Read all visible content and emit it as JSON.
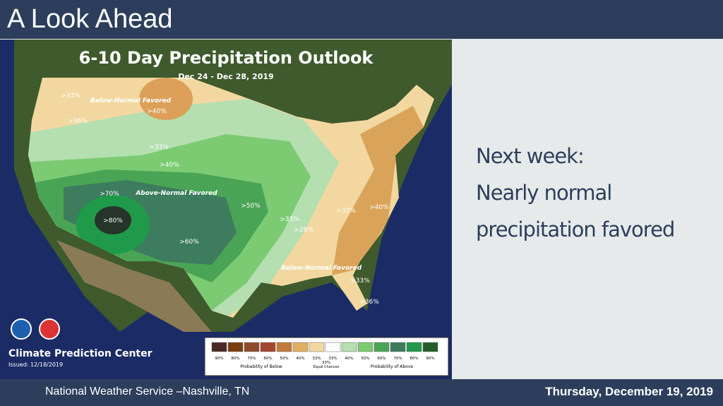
{
  "header": {
    "title": "A Look Ahead"
  },
  "map": {
    "title": "6-10 Day Precipitation Outlook",
    "dates": "Dec 24 - Dec 28, 2019",
    "labels": [
      ">33%",
      "Below-Normal Favored",
      ">40%",
      ">36%",
      ">33%",
      ">40%",
      ">70%",
      "Above-Normal Favored",
      ">80%",
      ">60%",
      ">50%",
      ">33%",
      ">36%",
      ">33%",
      ">40%",
      "Below-Normal Favored",
      ">33%",
      ">36%"
    ],
    "center": "Climate Prediction Center",
    "issued": "Issued: 12/18/2019",
    "legend": {
      "categories": [
        "90%",
        "80%",
        "70%",
        "60%",
        "50%",
        "40%",
        "33%",
        "33%",
        "33%",
        "40%",
        "50%",
        "60%",
        "70%",
        "80%",
        "90%"
      ],
      "below": "Probability of Below",
      "equal": "Equal Chances",
      "above": "Probability of Above"
    }
  },
  "panel": {
    "lines": [
      "Next week:",
      "Nearly normal",
      "precipitation favored"
    ]
  },
  "footer": {
    "left": "National Weather Service –Nashville, TN",
    "right": "Thursday, December 19, 2019"
  }
}
